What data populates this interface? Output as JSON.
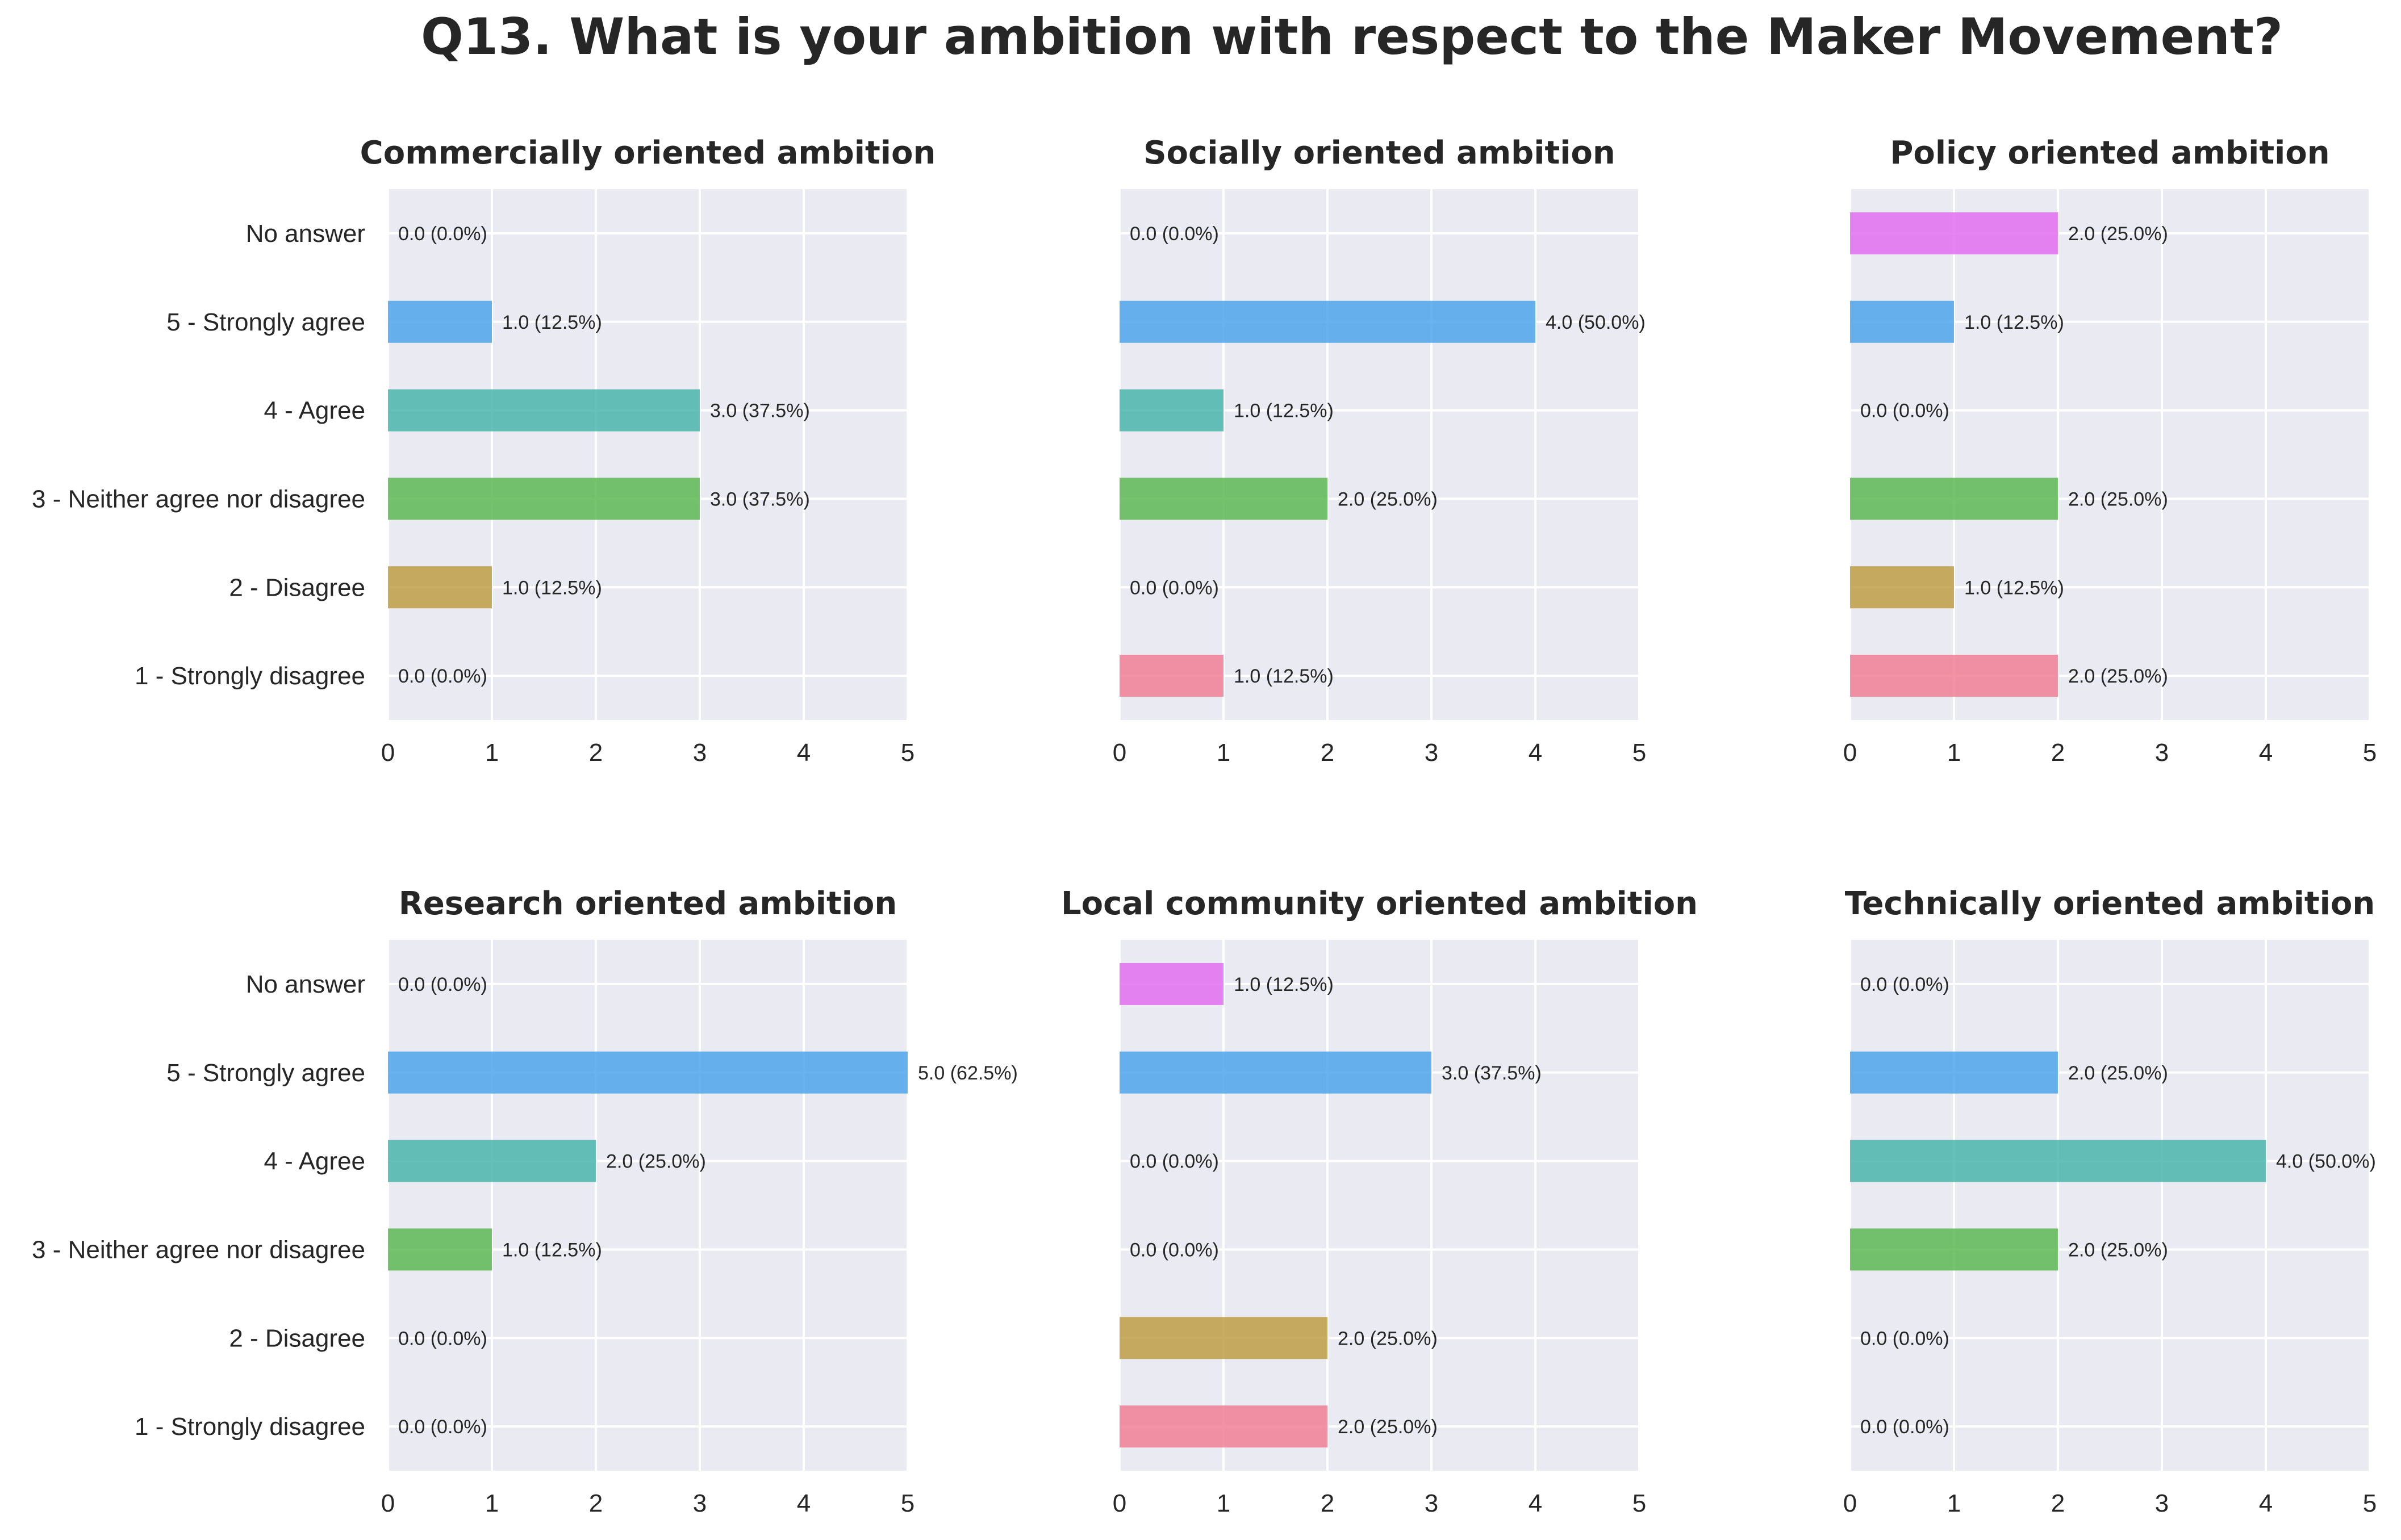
{
  "title": "Q13. What is your ambition with respect to the Maker Movement?",
  "colors": {
    "background": "#eaeaf2",
    "grid": "#ffffff",
    "text": "#262626",
    "categories": [
      "#e36ff0",
      "#4ea5ec",
      "#4ab5ad",
      "#5db954",
      "#bd9d45",
      "#f17f95"
    ]
  },
  "chart_data": [
    {
      "type": "bar",
      "orientation": "horizontal",
      "title": "Commercially oriented ambition",
      "categories": [
        "No answer",
        "5 - Strongly agree",
        "4 - Agree",
        "3 - Neither agree nor disagree",
        "2 - Disagree",
        "1 - Strongly disagree"
      ],
      "values": [
        0.0,
        1.0,
        3.0,
        3.0,
        1.0,
        0.0
      ],
      "labels": [
        "0.0 (0.0%)",
        "1.0 (12.5%)",
        "3.0 (37.5%)",
        "3.0 (37.5%)",
        "1.0 (12.5%)",
        "0.0 (0.0%)"
      ],
      "xlim": [
        0,
        5
      ],
      "xticks": [
        "0",
        "1",
        "2",
        "3",
        "4",
        "5"
      ],
      "grid": true
    },
    {
      "type": "bar",
      "orientation": "horizontal",
      "title": "Socially oriented ambition",
      "categories": [
        "No answer",
        "5 - Strongly agree",
        "4 - Agree",
        "3 - Neither agree nor disagree",
        "2 - Disagree",
        "1 - Strongly disagree"
      ],
      "values": [
        0.0,
        4.0,
        1.0,
        2.0,
        0.0,
        1.0
      ],
      "labels": [
        "0.0 (0.0%)",
        "4.0 (50.0%)",
        "1.0 (12.5%)",
        "2.0 (25.0%)",
        "0.0 (0.0%)",
        "1.0 (12.5%)"
      ],
      "xlim": [
        0,
        5
      ],
      "xticks": [
        "0",
        "1",
        "2",
        "3",
        "4",
        "5"
      ],
      "grid": true
    },
    {
      "type": "bar",
      "orientation": "horizontal",
      "title": "Policy oriented ambition",
      "categories": [
        "No answer",
        "5 - Strongly agree",
        "4 - Agree",
        "3 - Neither agree nor disagree",
        "2 - Disagree",
        "1 - Strongly disagree"
      ],
      "values": [
        2.0,
        1.0,
        0.0,
        2.0,
        1.0,
        2.0
      ],
      "labels": [
        "2.0 (25.0%)",
        "1.0 (12.5%)",
        "0.0 (0.0%)",
        "2.0 (25.0%)",
        "1.0 (12.5%)",
        "2.0 (25.0%)"
      ],
      "xlim": [
        0,
        5
      ],
      "xticks": [
        "0",
        "1",
        "2",
        "3",
        "4",
        "5"
      ],
      "grid": true
    },
    {
      "type": "bar",
      "orientation": "horizontal",
      "title": "Research oriented ambition",
      "categories": [
        "No answer",
        "5 - Strongly agree",
        "4 - Agree",
        "3 - Neither agree nor disagree",
        "2 - Disagree",
        "1 - Strongly disagree"
      ],
      "values": [
        0.0,
        5.0,
        2.0,
        1.0,
        0.0,
        0.0
      ],
      "labels": [
        "0.0 (0.0%)",
        "5.0 (62.5%)",
        "2.0 (25.0%)",
        "1.0 (12.5%)",
        "0.0 (0.0%)",
        "0.0 (0.0%)"
      ],
      "xlim": [
        0,
        5
      ],
      "xticks": [
        "0",
        "1",
        "2",
        "3",
        "4",
        "5"
      ],
      "grid": true
    },
    {
      "type": "bar",
      "orientation": "horizontal",
      "title": "Local community oriented ambition",
      "categories": [
        "No answer",
        "5 - Strongly agree",
        "4 - Agree",
        "3 - Neither agree nor disagree",
        "2 - Disagree",
        "1 - Strongly disagree"
      ],
      "values": [
        1.0,
        3.0,
        0.0,
        0.0,
        2.0,
        2.0
      ],
      "labels": [
        "1.0 (12.5%)",
        "3.0 (37.5%)",
        "0.0 (0.0%)",
        "0.0 (0.0%)",
        "2.0 (25.0%)",
        "2.0 (25.0%)"
      ],
      "xlim": [
        0,
        5
      ],
      "xticks": [
        "0",
        "1",
        "2",
        "3",
        "4",
        "5"
      ],
      "grid": true
    },
    {
      "type": "bar",
      "orientation": "horizontal",
      "title": "Technically oriented ambition",
      "categories": [
        "No answer",
        "5 - Strongly agree",
        "4 - Agree",
        "3 - Neither agree nor disagree",
        "2 - Disagree",
        "1 - Strongly disagree"
      ],
      "values": [
        0.0,
        2.0,
        4.0,
        2.0,
        0.0,
        0.0
      ],
      "labels": [
        "0.0 (0.0%)",
        "2.0 (25.0%)",
        "4.0 (50.0%)",
        "2.0 (25.0%)",
        "0.0 (0.0%)",
        "0.0 (0.0%)"
      ],
      "xlim": [
        0,
        5
      ],
      "xticks": [
        "0",
        "1",
        "2",
        "3",
        "4",
        "5"
      ],
      "grid": true
    }
  ]
}
